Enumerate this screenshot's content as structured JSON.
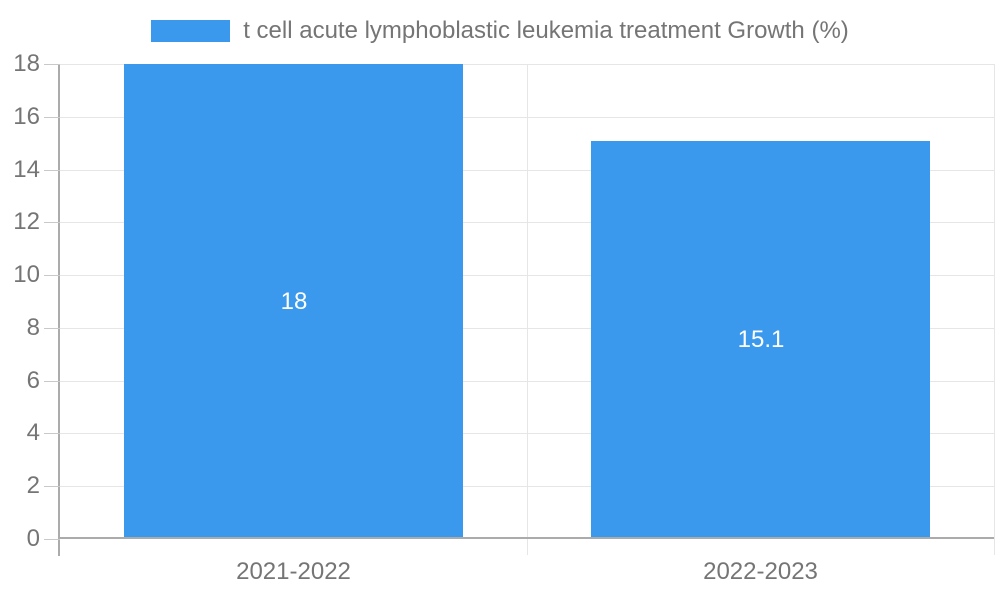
{
  "chart_data": {
    "type": "bar",
    "title": "",
    "legend_label": "t cell acute lymphoblastic leukemia treatment Growth (%)",
    "legend_position": "top",
    "categories": [
      "2021-2022",
      "2022-2023"
    ],
    "values": [
      18,
      15.1
    ],
    "value_labels": [
      "18",
      "15.1"
    ],
    "ylabel": "",
    "xlabel": "",
    "ylim": [
      0,
      18
    ],
    "ytick_step": 2,
    "grid": true,
    "colors": {
      "bar": "#3a99ec",
      "gridline": "#e6e6e6",
      "tick": "#c9c9c9",
      "axis_line": "#ababab",
      "axis_text": "#757575",
      "value_text": "#ffffff",
      "background": "#ffffff"
    }
  }
}
